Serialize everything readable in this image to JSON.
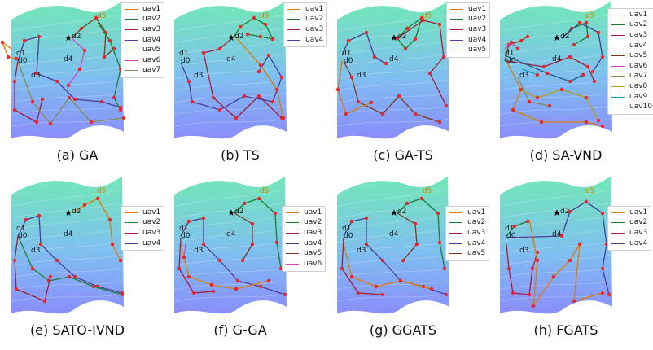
{
  "colors": {
    "uav1": "#e07b00",
    "uav2": "#1a7f2e",
    "uav3": "#a51d3a",
    "uav4": "#4b3c9a",
    "uav5": "#7a3b1f",
    "uav6": "#d845c8",
    "uav7": "#7f8f4f",
    "uav8": "#b7a300",
    "uav9": "#0ea0b8",
    "uav10": "#1f5d8c",
    "target": "#e8242c",
    "depot": "#000000",
    "surface_top": "#72e8b7",
    "surface_bottom": "#8a8dfb"
  },
  "chart_data": [
    {
      "type": "line",
      "panel": "a",
      "caption": "(a) GA",
      "legend_position": "upper-right",
      "legend": [
        "uav1",
        "uav2",
        "uav3",
        "uav4",
        "uav5",
        "uav6",
        "uav7"
      ],
      "depot_labels": [
        "d1",
        "d0",
        "d2",
        "d3",
        "d4",
        "d5"
      ]
    },
    {
      "type": "line",
      "panel": "b",
      "caption": "(b) TS",
      "legend_position": "upper-right",
      "legend": [
        "uav1",
        "uav2",
        "uav3",
        "uav4"
      ],
      "depot_labels": [
        "d1",
        "d0",
        "d2",
        "d3",
        "d4",
        "d5"
      ]
    },
    {
      "type": "line",
      "panel": "c",
      "caption": "(c) GA-TS",
      "legend_position": "upper-right",
      "legend": [
        "uav1",
        "uav2",
        "uav3",
        "uav4",
        "uav5"
      ],
      "depot_labels": [
        "d1",
        "d0",
        "d2",
        "d3",
        "d4",
        "d5"
      ]
    },
    {
      "type": "line",
      "panel": "d",
      "caption": "(d) SA-VND",
      "legend_position": "upper-right",
      "legend": [
        "uav1",
        "uav2",
        "uav3",
        "uav4",
        "uav5",
        "uav6",
        "uav7",
        "uav8",
        "uav9",
        "uav10"
      ],
      "depot_labels": [
        "d1",
        "d0",
        "d2",
        "d3",
        "d4",
        "d5"
      ]
    },
    {
      "type": "line",
      "panel": "e",
      "caption": "(e) SATO-IVND",
      "legend_position": "upper-right",
      "legend": [
        "uav1",
        "uav2",
        "uav3",
        "uav4"
      ],
      "depot_labels": [
        "d1",
        "d0",
        "d2",
        "d3",
        "d4",
        "d5"
      ]
    },
    {
      "type": "line",
      "panel": "f",
      "caption": "(f) G-GA",
      "legend_position": "upper-right",
      "legend": [
        "uav1",
        "uav2",
        "uav3",
        "uav4",
        "uav5",
        "uav6"
      ],
      "depot_labels": [
        "d1",
        "d0",
        "d2",
        "d3",
        "d4",
        "d5"
      ]
    },
    {
      "type": "line",
      "panel": "g",
      "caption": "(g) GGATS",
      "legend_position": "upper-right",
      "legend": [
        "uav1",
        "uav2",
        "uav3",
        "uav4",
        "uav5"
      ],
      "depot_labels": [
        "d1",
        "d0",
        "d2",
        "d3",
        "d4",
        "d5"
      ]
    },
    {
      "type": "line",
      "panel": "h",
      "caption": "(h) FGATS",
      "legend_position": "upper-right",
      "legend": [
        "uav1",
        "uav2",
        "uav3",
        "uav4"
      ],
      "depot_labels": [
        "d1",
        "d0",
        "d2",
        "d3",
        "d4",
        "d5"
      ]
    }
  ]
}
